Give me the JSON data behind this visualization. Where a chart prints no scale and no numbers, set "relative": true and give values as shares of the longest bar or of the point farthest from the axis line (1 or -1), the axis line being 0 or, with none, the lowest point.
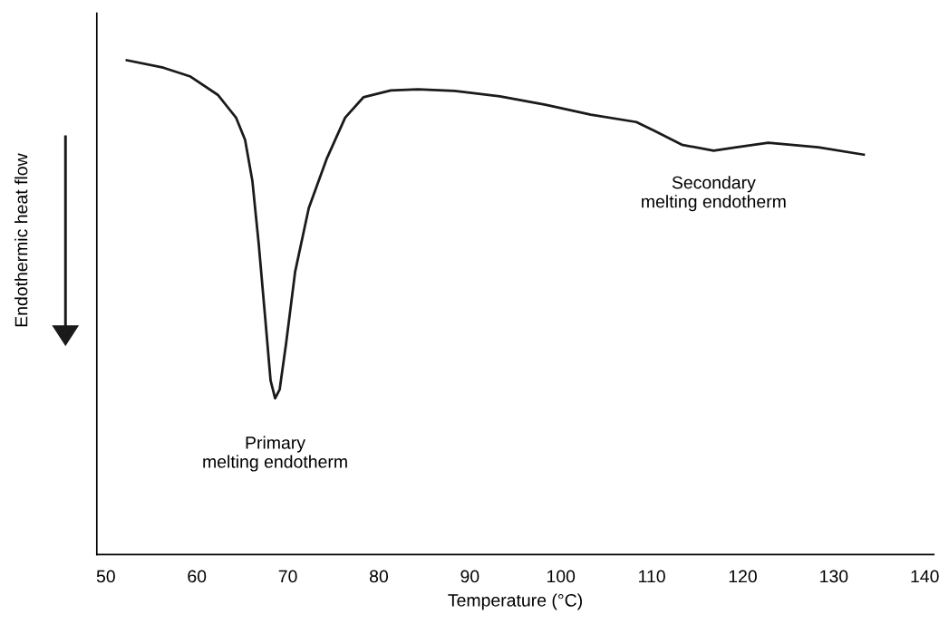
{
  "chart_data": {
    "type": "line",
    "relative": true,
    "xlabel": "Temperature (°C)",
    "ylabel": "Endothermic heat flow",
    "xlim": [
      49,
      141
    ],
    "xticks": [
      50,
      60,
      70,
      80,
      90,
      100,
      110,
      120,
      130,
      140
    ],
    "grid": false,
    "tick_labels": "x",
    "x": [
      52.3,
      56.3,
      59.3,
      62.3,
      64.3,
      65.3,
      66.1,
      66.8,
      67.5,
      68.1,
      68.6,
      69.1,
      69.8,
      70.8,
      72.3,
      74.3,
      76.3,
      78.3,
      81.3,
      84.3,
      88.3,
      93.3,
      98.3,
      103.3,
      108.3,
      110.3,
      113.3,
      116.8,
      119.3,
      122.8,
      128.3,
      133.3
    ],
    "series": [
      {
        "color": "#1a1a1a",
        "values": [
          1.0,
          0.985,
          0.967,
          0.93,
          0.884,
          0.839,
          0.756,
          0.628,
          0.481,
          0.352,
          0.316,
          0.334,
          0.426,
          0.572,
          0.701,
          0.802,
          0.884,
          0.925,
          0.939,
          0.941,
          0.938,
          0.927,
          0.91,
          0.89,
          0.875,
          0.857,
          0.829,
          0.817,
          0.824,
          0.833,
          0.824,
          0.809
        ]
      }
    ],
    "annotations": [
      {
        "text": "Primary\nmelting endotherm",
        "x": 68.6,
        "y": 0.316
      },
      {
        "text": "Secondary\nmelting endotherm",
        "x": 116.8,
        "y": 0.817
      }
    ]
  }
}
